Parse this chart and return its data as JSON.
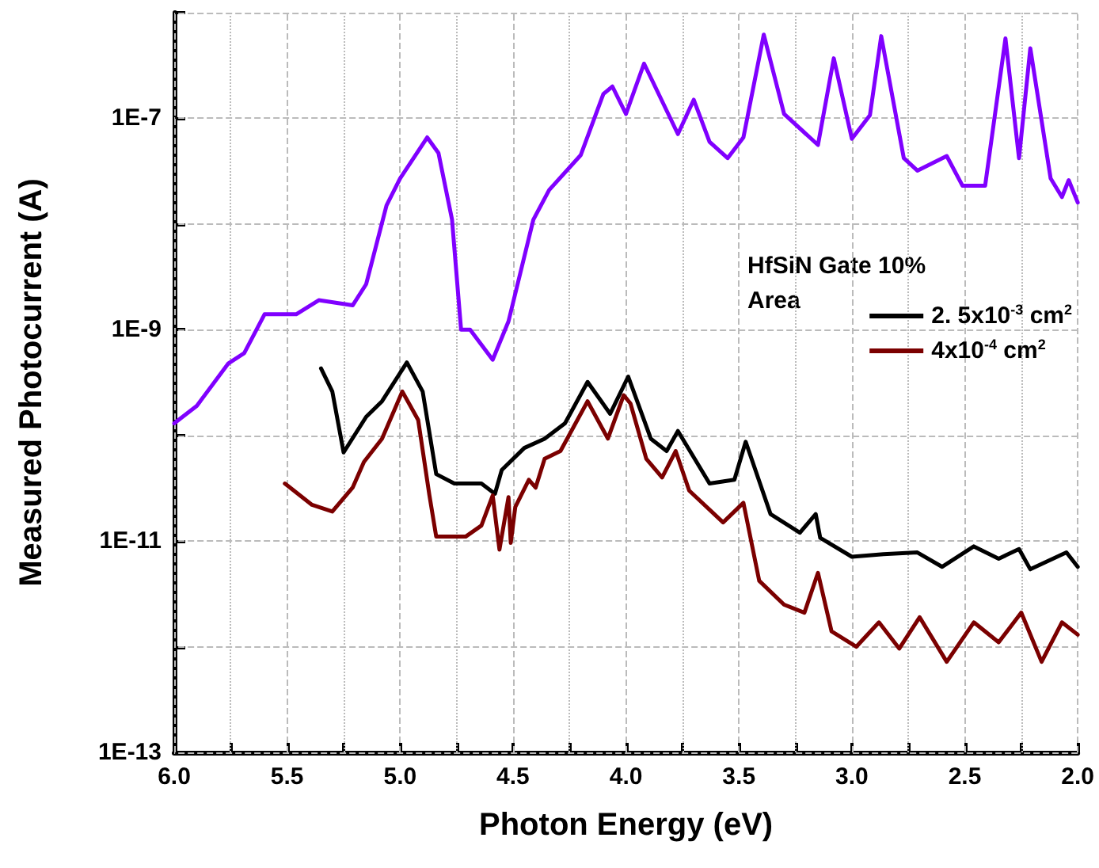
{
  "chart_data": {
    "type": "line",
    "xlabel": "Photon Energy (eV)",
    "ylabel": "Measured Photocurrent (A)",
    "legend_title": "HfSiN Gate 10% Area",
    "log": "y",
    "grid": true,
    "legend": "right",
    "marker": "none",
    "line_style": "solid",
    "xlim": [
      6.0,
      2.0
    ],
    "ylim": [
      1e-13,
      1e-06
    ],
    "xticks": [
      {
        "value": 6,
        "label": "6.0"
      },
      {
        "value": 5.75,
        "label": null
      },
      {
        "value": 5.5,
        "label": "5.5"
      },
      {
        "value": 5.25,
        "label": null
      },
      {
        "value": 5,
        "label": "5.0"
      },
      {
        "value": 4.75,
        "label": null
      },
      {
        "value": 4.5,
        "label": "4.5"
      },
      {
        "value": 4.25,
        "label": null
      },
      {
        "value": 4,
        "label": "4.0"
      },
      {
        "value": 3.75,
        "label": null
      },
      {
        "value": 3.5,
        "label": "3.5"
      },
      {
        "value": 3.25,
        "label": null
      },
      {
        "value": 3,
        "label": "3.0"
      },
      {
        "value": 2.75,
        "label": null
      },
      {
        "value": 2.5,
        "label": "2.5"
      },
      {
        "value": 2.25,
        "label": null
      },
      {
        "value": 2,
        "label": "2.0"
      }
    ],
    "yticks": [
      {
        "value": 1e-13,
        "label": "1E-13"
      },
      {
        "value": 1e-12,
        "label": null
      },
      {
        "value": 1e-11,
        "label": "1E-11"
      },
      {
        "value": 1e-10,
        "label": null
      },
      {
        "value": 1e-09,
        "label": "1E-9"
      },
      {
        "value": 1e-08,
        "label": null
      },
      {
        "value": 1e-07,
        "label": "1E-7"
      },
      {
        "value": 1e-06,
        "label": null
      }
    ],
    "series": [
      {
        "color": "#8000ff",
        "x": [
          6.0,
          5.9,
          5.76,
          5.69,
          5.6,
          5.46,
          5.36,
          5.21,
          5.15,
          5.06,
          5.0,
          4.88,
          4.83,
          4.77,
          4.73,
          4.69,
          4.59,
          4.52,
          4.41,
          4.34,
          4.2,
          4.1,
          4.06,
          4.0,
          3.92,
          3.77,
          3.7,
          3.63,
          3.55,
          3.48,
          3.39,
          3.3,
          3.15,
          3.08,
          3.0,
          2.92,
          2.87,
          2.77,
          2.71,
          2.58,
          2.51,
          2.41,
          2.32,
          2.26,
          2.21,
          2.12,
          2.07,
          2.04,
          2.0
        ],
        "values": [
          1.3e-10,
          1.9e-10,
          4.8e-10,
          6e-10,
          1.4e-09,
          1.4e-09,
          1.9e-09,
          1.7e-09,
          2.7e-09,
          1.5e-08,
          2.7e-08,
          6.6e-08,
          4.7e-08,
          1.1e-08,
          1e-09,
          1e-09,
          5.2e-10,
          1.2e-09,
          1.1e-08,
          2.1e-08,
          4.5e-08,
          1.7e-07,
          2e-07,
          1.1e-07,
          3.3e-07,
          7.1e-08,
          1.5e-07,
          6e-08,
          4.2e-08,
          6.6e-08,
          6.2e-07,
          1.1e-07,
          5.6e-08,
          3.7e-07,
          6.4e-08,
          1.07e-07,
          6e-07,
          4.2e-08,
          3.2e-08,
          4.4e-08,
          2.3e-08,
          2.3e-08,
          5.7e-07,
          4.2e-08,
          4.6e-07,
          2.7e-08,
          1.8e-08,
          2.6e-08,
          1.6e-08
        ]
      },
      {
        "name": "2. 5x10$^{-3}$ cm$^{2}$",
        "color": "#000000",
        "x": [
          5.35,
          5.3,
          5.25,
          5.15,
          5.08,
          4.97,
          4.9,
          4.84,
          4.76,
          4.64,
          4.58,
          4.55,
          4.45,
          4.36,
          4.27,
          4.17,
          4.07,
          3.99,
          3.89,
          3.82,
          3.77,
          3.63,
          3.52,
          3.47,
          3.36,
          3.23,
          3.16,
          3.14,
          3.0,
          2.86,
          2.71,
          2.6,
          2.46,
          2.35,
          2.26,
          2.21,
          2.05,
          2.0
        ],
        "values": [
          4.3e-10,
          2.6e-10,
          6.9e-11,
          1.5e-10,
          2.1e-10,
          4.9e-10,
          2.6e-10,
          4.3e-11,
          3.5e-11,
          3.5e-11,
          2.8e-11,
          4.7e-11,
          7.6e-11,
          9.3e-11,
          1.3e-10,
          3.2e-10,
          1.6e-10,
          3.6e-10,
          9.3e-11,
          7.1e-11,
          1.1e-10,
          3.5e-11,
          3.8e-11,
          8.7e-11,
          1.8e-11,
          1.2e-11,
          1.8e-11,
          1.07e-11,
          7.1e-12,
          7.5e-12,
          7.8e-12,
          5.7e-12,
          8.9e-12,
          6.8e-12,
          8.4e-12,
          5.4e-12,
          7.8e-12,
          5.7e-12
        ]
      },
      {
        "name": "4x10$^{-4}$ cm$^{2}$",
        "color": "#7b0000",
        "x": [
          5.51,
          5.39,
          5.3,
          5.21,
          5.16,
          5.08,
          4.99,
          4.92,
          4.87,
          4.84,
          4.71,
          4.64,
          4.59,
          4.56,
          4.52,
          4.51,
          4.49,
          4.43,
          4.4,
          4.36,
          4.29,
          4.17,
          4.08,
          4.01,
          3.98,
          3.91,
          3.84,
          3.78,
          3.72,
          3.57,
          3.48,
          3.41,
          3.3,
          3.21,
          3.15,
          3.09,
          2.98,
          2.88,
          2.79,
          2.7,
          2.58,
          2.46,
          2.35,
          2.25,
          2.16,
          2.07,
          2.0
        ],
        "values": [
          3.5e-11,
          2.2e-11,
          1.9e-11,
          3.2e-11,
          5.6e-11,
          9.3e-11,
          2.6e-10,
          1.4e-10,
          2.7e-11,
          1.1e-11,
          1.1e-11,
          1.4e-11,
          2.7e-11,
          8.3e-12,
          2.6e-11,
          9.6e-12,
          2.1e-11,
          3.8e-11,
          3.2e-11,
          6e-11,
          7.1e-11,
          2.1e-10,
          9.3e-11,
          2.4e-10,
          2e-10,
          6e-11,
          4e-11,
          7.1e-11,
          3e-11,
          1.5e-11,
          2.3e-11,
          4.2e-12,
          2.5e-12,
          2.1e-12,
          5e-12,
          1.4e-12,
          1e-12,
          1.7e-12,
          9.6e-13,
          1.9e-12,
          7.2e-13,
          1.7e-12,
          1.1e-12,
          2.1e-12,
          7.2e-13,
          1.7e-12,
          1.3e-12
        ]
      }
    ]
  }
}
